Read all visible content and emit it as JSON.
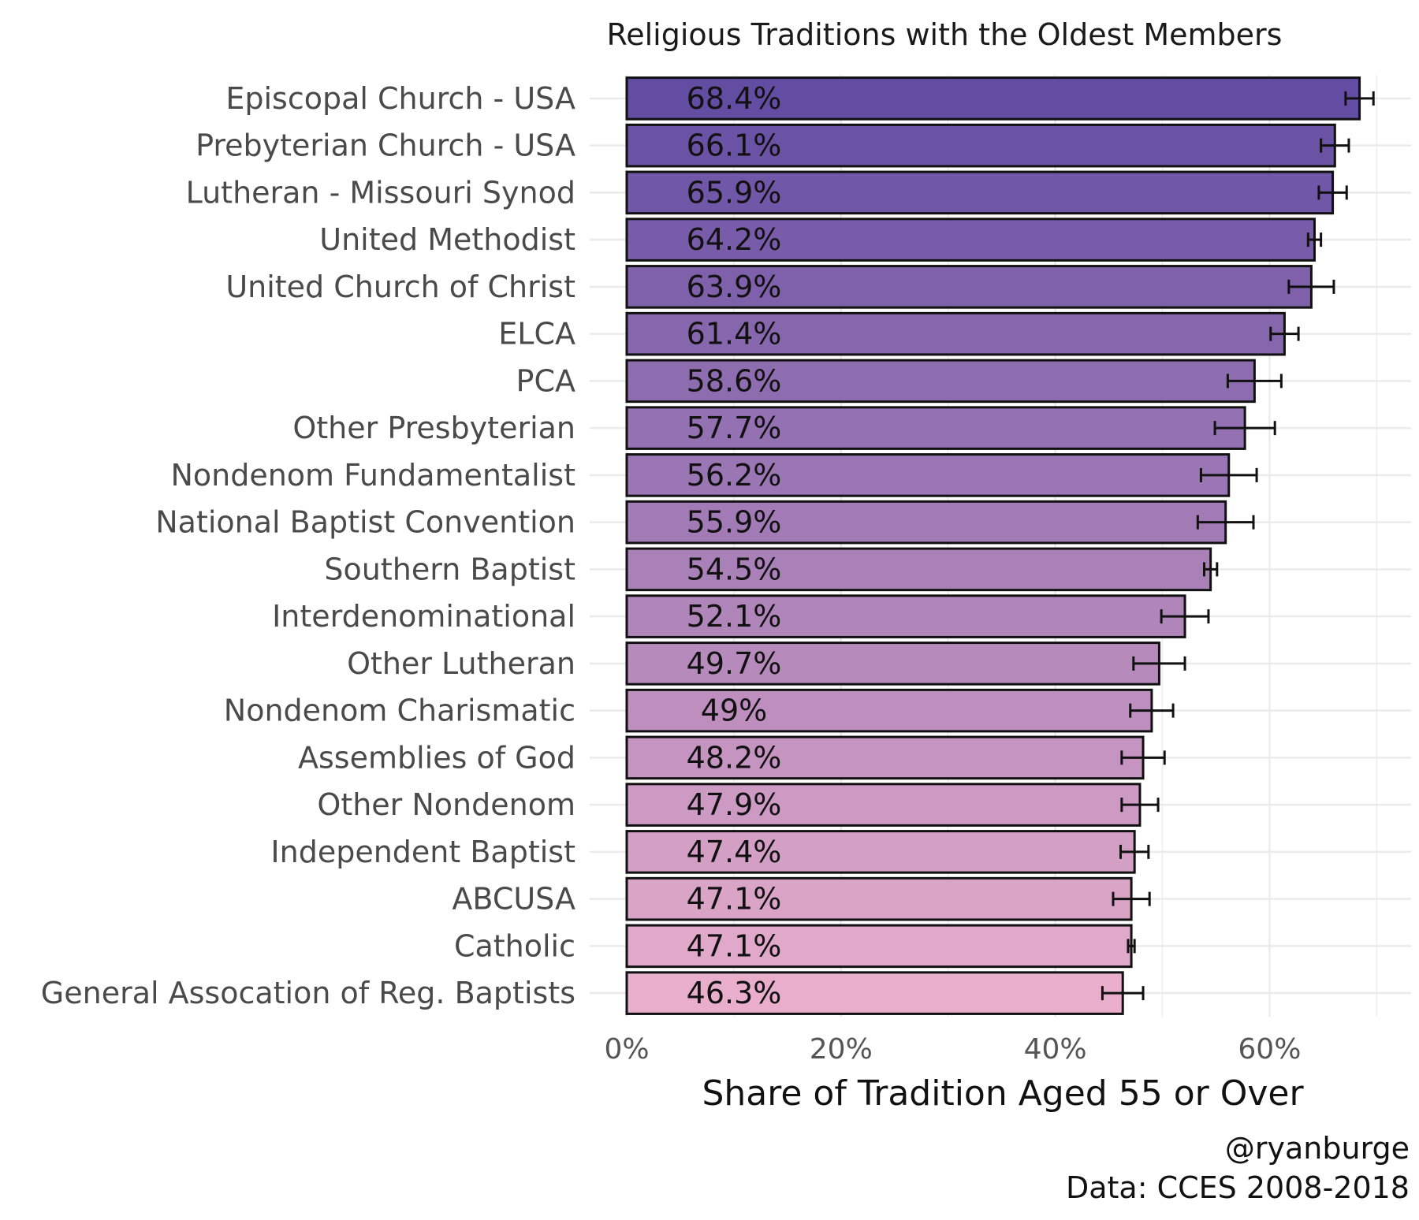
{
  "chart_data": {
    "type": "bar",
    "orientation": "horizontal",
    "title": "Religious Traditions with the Oldest Members",
    "xlabel": "Share of Tradition Aged 55 or Over",
    "ylabel": "",
    "xlim": [
      0,
      70
    ],
    "xticks": [
      0,
      20,
      40,
      60
    ],
    "xtick_labels": [
      "0%",
      "20%",
      "40%",
      "60%"
    ],
    "grid": true,
    "legend": "none",
    "error_bars": true,
    "categories": [
      "Episcopal Church - USA",
      "Prebyterian Church - USA",
      "Lutheran - Missouri Synod",
      "United Methodist",
      "United Church of Christ",
      "ELCA",
      "PCA",
      "Other Presbyterian",
      "Nondenom Fundamentalist",
      "National Baptist Convention",
      "Southern Baptist",
      "Interdenominational",
      "Other Lutheran",
      "Nondenom Charismatic",
      "Assemblies of God",
      "Other Nondenom",
      "Independent Baptist",
      "ABCUSA",
      "Catholic",
      "General Assocation of Reg. Baptists"
    ],
    "values": [
      68.4,
      66.1,
      65.9,
      64.2,
      63.9,
      61.4,
      58.6,
      57.7,
      56.2,
      55.9,
      54.5,
      52.1,
      49.7,
      49.0,
      48.2,
      47.9,
      47.4,
      47.1,
      47.1,
      46.3
    ],
    "value_labels": [
      "68.4%",
      "66.1%",
      "65.9%",
      "64.2%",
      "63.9%",
      "61.4%",
      "58.6%",
      "57.7%",
      "56.2%",
      "55.9%",
      "54.5%",
      "52.1%",
      "49.7%",
      "49%",
      "48.2%",
      "47.9%",
      "47.4%",
      "47.1%",
      "47.1%",
      "46.3%"
    ],
    "error_low": [
      67.1,
      64.8,
      64.6,
      63.6,
      61.8,
      60.1,
      56.1,
      54.9,
      53.6,
      53.3,
      53.9,
      49.9,
      47.3,
      47.0,
      46.2,
      46.2,
      46.1,
      45.4,
      46.8,
      44.4
    ],
    "error_high": [
      69.7,
      67.4,
      67.2,
      64.8,
      66.0,
      62.7,
      61.1,
      60.5,
      58.8,
      58.5,
      55.1,
      54.3,
      52.1,
      51.0,
      50.2,
      49.6,
      48.7,
      48.8,
      47.4,
      48.2
    ],
    "colors": {
      "top": "#634da3",
      "bottom": "#e8aecb",
      "bar_outline": "#111111",
      "grid": "#ebebeb",
      "error_bar": "#111111"
    }
  },
  "caption": {
    "handle": "@ryanburge",
    "source": "Data: CCES 2008-2018"
  }
}
